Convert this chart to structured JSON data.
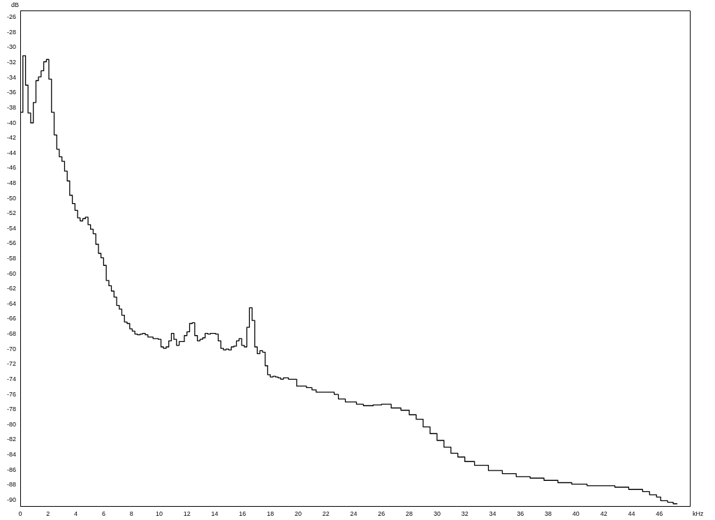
{
  "chart_data": {
    "type": "step",
    "xlabel": "kHz",
    "ylabel": "dB",
    "color": "#000000",
    "marker": "none",
    "x": [
      0,
      0.19,
      0.38,
      0.56,
      0.75,
      0.94,
      1.13,
      1.31,
      1.5,
      1.69,
      1.88,
      2.06,
      2.25,
      2.44,
      2.63,
      2.81,
      3,
      3.19,
      3.38,
      3.56,
      3.75,
      3.94,
      4.13,
      4.31,
      4.5,
      4.69,
      4.88,
      5.06,
      5.25,
      5.44,
      5.63,
      5.81,
      6,
      6.19,
      6.38,
      6.56,
      6.75,
      6.94,
      7.13,
      7.31,
      7.5,
      7.69,
      7.88,
      8.06,
      8.25,
      8.44,
      8.63,
      8.81,
      9,
      9.19,
      9.38,
      9.56,
      9.75,
      9.94,
      10.13,
      10.31,
      10.5,
      10.69,
      10.88,
      11.06,
      11.25,
      11.44,
      11.63,
      11.81,
      12,
      12.19,
      12.38,
      12.56,
      12.75,
      12.94,
      13.13,
      13.31,
      13.5,
      13.69,
      13.88,
      14.06,
      14.25,
      14.44,
      14.63,
      14.81,
      15,
      15.19,
      15.38,
      15.56,
      15.75,
      15.94,
      16.13,
      16.31,
      16.5,
      16.69,
      16.88,
      17.06,
      17.25,
      17.44,
      17.63,
      17.81,
      18,
      18.19,
      18.38,
      18.56,
      18.75,
      18.94,
      19.31,
      19.9,
      20.6,
      21.0,
      21.3,
      22.6,
      22.9,
      23.4,
      24.2,
      24.7,
      25.4,
      26.0,
      26.7,
      27.4,
      28.0,
      28.5,
      29.0,
      29.5,
      30.0,
      30.5,
      31.0,
      31.5,
      32.0,
      32.7,
      33.7,
      34.7,
      35.7,
      36.7,
      37.7,
      38.7,
      39.7,
      40.8,
      42.8,
      43.8,
      44.8,
      45.3,
      45.8,
      46.1,
      46.6,
      47.0,
      47.3
    ],
    "values": [
      -38.6,
      -31.1,
      -35.0,
      -38.7,
      -40.0,
      -37.3,
      -34.4,
      -33.9,
      -33.1,
      -31.9,
      -31.6,
      -34.2,
      -38.6,
      -41.6,
      -43.5,
      -44.5,
      -45.1,
      -46.4,
      -47.7,
      -49.6,
      -50.7,
      -51.6,
      -52.6,
      -53.0,
      -52.7,
      -52.5,
      -53.5,
      -54.1,
      -54.7,
      -56.1,
      -57.3,
      -57.9,
      -58.9,
      -60.9,
      -61.6,
      -62.3,
      -63.1,
      -64.2,
      -64.7,
      -65.5,
      -66.4,
      -66.6,
      -67.3,
      -67.6,
      -68.0,
      -68.1,
      -68.0,
      -67.9,
      -68.1,
      -68.4,
      -68.4,
      -68.6,
      -68.6,
      -68.7,
      -69.7,
      -69.9,
      -69.7,
      -68.9,
      -67.9,
      -68.7,
      -69.5,
      -69.0,
      -69.0,
      -68.2,
      -67.7,
      -66.6,
      -66.5,
      -68.2,
      -68.9,
      -68.7,
      -68.5,
      -67.9,
      -68.0,
      -67.9,
      -67.9,
      -68.0,
      -68.9,
      -69.9,
      -70.1,
      -70.0,
      -70.1,
      -69.7,
      -69.6,
      -68.9,
      -68.6,
      -69.5,
      -69.7,
      -67.1,
      -64.5,
      -66.2,
      -69.7,
      -70.6,
      -70.2,
      -70.4,
      -72.2,
      -73.4,
      -73.7,
      -73.6,
      -73.7,
      -73.8,
      -74.0,
      -73.8,
      -74.0,
      -74.9,
      -75.1,
      -75.4,
      -75.7,
      -76.0,
      -76.6,
      -77.0,
      -77.3,
      -77.5,
      -77.4,
      -77.3,
      -77.8,
      -78.1,
      -78.7,
      -79.3,
      -80.3,
      -81.2,
      -82.1,
      -83.0,
      -83.8,
      -84.3,
      -84.9,
      -85.4,
      -86.1,
      -86.5,
      -86.9,
      -87.1,
      -87.4,
      -87.7,
      -87.9,
      -88.1,
      -88.3,
      -88.6,
      -88.9,
      -89.3,
      -89.6,
      -90.1,
      -90.3,
      -90.5,
      -90.5
    ],
    "xlim": [
      0,
      48.2
    ],
    "ylim": [
      -90.8,
      -25.1
    ],
    "xticks": [
      0,
      2,
      4,
      6,
      8,
      10,
      12,
      14,
      16,
      18,
      20,
      22,
      24,
      26,
      28,
      30,
      32,
      34,
      36,
      38,
      40,
      42,
      44,
      46
    ],
    "yticks": [
      -90,
      -88,
      -86,
      -84,
      -82,
      -80,
      -78,
      -76,
      -74,
      -72,
      -70,
      -68,
      -66,
      -64,
      -62,
      -60,
      -58,
      -56,
      -54,
      -52,
      -50,
      -48,
      -46,
      -44,
      -42,
      -40,
      -38,
      -36,
      -34,
      -32,
      -30,
      -28,
      -26
    ]
  }
}
